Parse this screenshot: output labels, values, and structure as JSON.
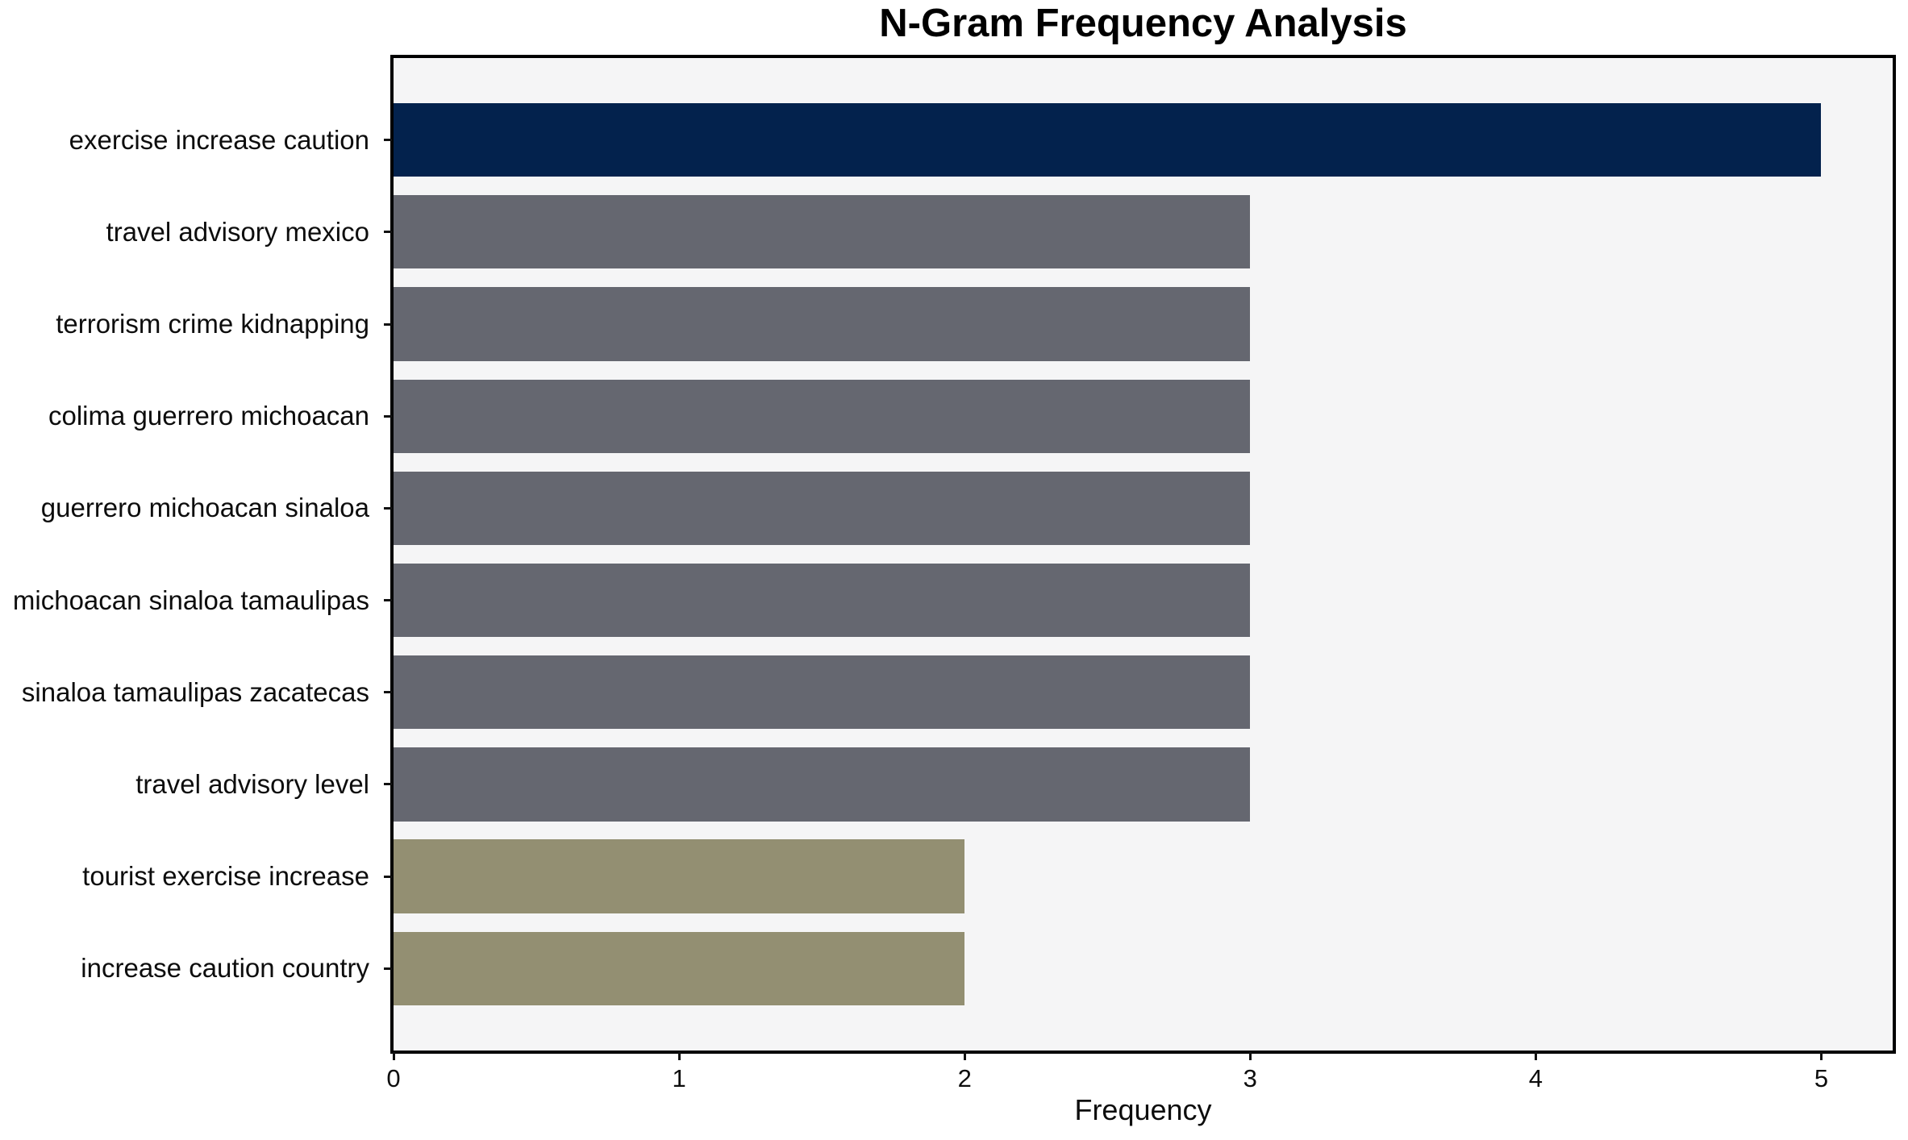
{
  "chart_data": {
    "type": "bar",
    "orientation": "horizontal",
    "title": "N-Gram Frequency Analysis",
    "xlabel": "Frequency",
    "ylabel": "",
    "categories": [
      "exercise increase caution",
      "travel advisory mexico",
      "terrorism crime kidnapping",
      "colima guerrero michoacan",
      "guerrero michoacan sinaloa",
      "michoacan sinaloa tamaulipas",
      "sinaloa tamaulipas zacatecas",
      "travel advisory level",
      "tourist exercise increase",
      "increase caution country"
    ],
    "values": [
      5,
      3,
      3,
      3,
      3,
      3,
      3,
      3,
      2,
      2
    ],
    "bar_colors": [
      "#03224d",
      "#656770",
      "#656770",
      "#656770",
      "#656770",
      "#656770",
      "#656770",
      "#656770",
      "#938f72",
      "#938f72"
    ],
    "xticks": [
      0,
      1,
      2,
      3,
      4,
      5
    ],
    "xlim": [
      0,
      5.25
    ],
    "grid": false,
    "legend": false,
    "plot_background": "#f5f5f6",
    "figure_background": "#ffffff"
  }
}
